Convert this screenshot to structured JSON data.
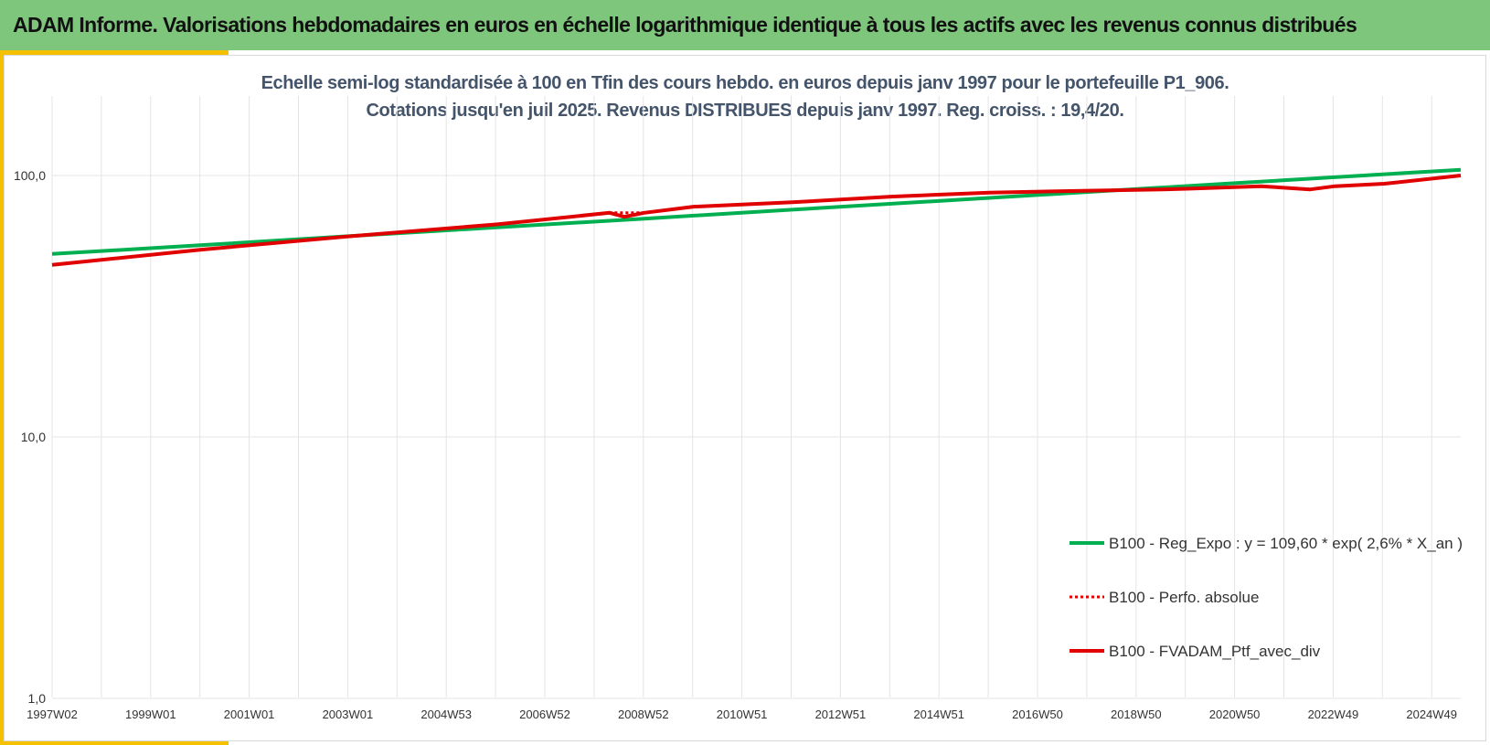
{
  "header": {
    "title": "ADAM Informe. Valorisations hebdomadaires en euros en échelle logarithmique identique à tous les actifs avec les revenus connus distribués"
  },
  "colors": {
    "header_bg": "#7dc67c",
    "accent": "#f5c000",
    "series_green": "#00b050",
    "series_red": "#e00000",
    "subtitle": "#44546a"
  },
  "chart_data": {
    "type": "line",
    "title": "Echelle semi-log standardisée  à 100 en Tfin des cours hebdo.  en euros depuis janv 1997 pour le portefeuille P1_906.",
    "subtitle": "Cotations jusqu'en juil 2025. Revenus DISTRIBUES depuis janv 1997. Reg. croiss. : 19,4/20.",
    "y_scale": "log",
    "ylim": [
      1,
      200
    ],
    "y_ticks": [
      {
        "value": 100,
        "label": "100,0"
      },
      {
        "value": 10,
        "label": "10,0"
      },
      {
        "value": 1,
        "label": "1,0"
      }
    ],
    "x_ticks": [
      "1997W02",
      "1999W01",
      "2001W01",
      "2003W01",
      "2004W53",
      "2006W52",
      "2008W52",
      "2010W51",
      "2012W51",
      "2014W51",
      "2016W50",
      "2018W50",
      "2020W50",
      "2022W49",
      "2024W49"
    ],
    "x_range": [
      1997.0,
      2025.55
    ],
    "grid": true,
    "legend_position": "right",
    "series": [
      {
        "name": "B100 - Reg_Expo : y = 109,60 * exp( 2,6% *  X_an )",
        "color": "#00b050",
        "style": "solid",
        "x": [
          1997.0,
          2000.0,
          2003.0,
          2006.0,
          2009.0,
          2012.0,
          2015.0,
          2018.0,
          2021.0,
          2024.0,
          2025.55
        ],
        "y": [
          50.1,
          54.1,
          58.6,
          63.3,
          68.4,
          74.0,
          80.0,
          86.5,
          93.5,
          101.1,
          105.2
        ]
      },
      {
        "name": "B100 - Perfo. absolue",
        "color": "#e00000",
        "style": "dotted",
        "x": [
          1997.0,
          2000.0,
          2003.0,
          2006.0,
          2008.3,
          2009.0,
          2010.0,
          2012.0,
          2014.0,
          2016.0,
          2018.0,
          2019.5,
          2020.0,
          2021.5,
          2022.5,
          2023.0,
          2024.0,
          2025.55
        ],
        "y": [
          45.5,
          52.0,
          58.5,
          65.0,
          72.0,
          72.0,
          76.0,
          79.0,
          83.0,
          86.0,
          87.5,
          88.5,
          89.0,
          91.0,
          88.5,
          91.0,
          93.0,
          100.0
        ]
      },
      {
        "name": "B100 - FVADAM_Ptf_avec_div",
        "color": "#e00000",
        "style": "solid",
        "x": [
          1997.0,
          2000.0,
          2003.0,
          2006.0,
          2008.3,
          2008.6,
          2009.0,
          2010.0,
          2012.0,
          2014.0,
          2016.0,
          2018.0,
          2019.5,
          2020.0,
          2021.5,
          2022.5,
          2023.0,
          2024.0,
          2025.55
        ],
        "y": [
          45.5,
          52.0,
          58.5,
          65.0,
          72.0,
          69.5,
          72.0,
          76.0,
          79.0,
          83.0,
          86.0,
          87.5,
          88.5,
          89.0,
          91.0,
          88.5,
          91.0,
          93.0,
          100.0
        ]
      }
    ]
  }
}
